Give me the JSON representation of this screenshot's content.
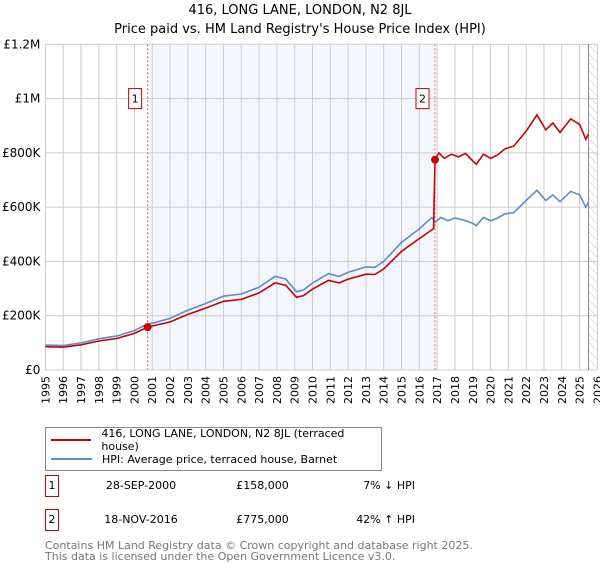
{
  "chart_data": {
    "type": "line",
    "title": "416, LONG LANE, LONDON, N2 8JL",
    "subtitle": "Price paid vs. HM Land Registry's House Price Index (HPI)",
    "xlim": [
      1995,
      2026
    ],
    "ylim": [
      0,
      1200000
    ],
    "x_ticks": [
      "1995",
      "1996",
      "1997",
      "1998",
      "1999",
      "2000",
      "2001",
      "2002",
      "2003",
      "2004",
      "2005",
      "2006",
      "2007",
      "2008",
      "2009",
      "2010",
      "2011",
      "2012",
      "2013",
      "2014",
      "2015",
      "2016",
      "2017",
      "2018",
      "2019",
      "2020",
      "2021",
      "2022",
      "2023",
      "2024",
      "2025",
      "2026"
    ],
    "y_ticks": [
      {
        "v": 0,
        "label": "£0"
      },
      {
        "v": 200000,
        "label": "£200K"
      },
      {
        "v": 400000,
        "label": "£400K"
      },
      {
        "v": 600000,
        "label": "£600K"
      },
      {
        "v": 800000,
        "label": "£800K"
      },
      {
        "v": 1000000,
        "label": "£1M"
      },
      {
        "v": 1200000,
        "label": "£1.2M"
      }
    ],
    "grid": true,
    "shaded_range": [
      2000.74,
      2016.88
    ],
    "forecast_hatch_from": 2025.5,
    "series": [
      {
        "name": "416, LONG LANE, LONDON, N2 8JL (terraced house)",
        "color": "#cc0000",
        "points": [
          [
            1995,
            86
          ],
          [
            1996,
            84
          ],
          [
            1997,
            93
          ],
          [
            1998,
            107
          ],
          [
            1999,
            116
          ],
          [
            2000,
            135
          ],
          [
            2000.74,
            158
          ],
          [
            2001,
            162
          ],
          [
            2002,
            177
          ],
          [
            2003,
            205
          ],
          [
            2004,
            228
          ],
          [
            2005,
            253
          ],
          [
            2006,
            260
          ],
          [
            2007,
            284
          ],
          [
            2007.9,
            321
          ],
          [
            2008.5,
            312
          ],
          [
            2009.1,
            268
          ],
          [
            2009.5,
            274
          ],
          [
            2010,
            298
          ],
          [
            2010.9,
            330
          ],
          [
            2011.5,
            321
          ],
          [
            2012,
            335
          ],
          [
            2013,
            353
          ],
          [
            2013.5,
            352
          ],
          [
            2014,
            372
          ],
          [
            2015,
            437
          ],
          [
            2016,
            484
          ],
          [
            2016.8,
            521
          ],
          [
            2016.88,
            775
          ],
          [
            2017.1,
            800
          ],
          [
            2017.4,
            780
          ],
          [
            2017.8,
            795
          ],
          [
            2018.2,
            785
          ],
          [
            2018.6,
            798
          ],
          [
            2019,
            770
          ],
          [
            2019.2,
            758
          ],
          [
            2019.6,
            795
          ],
          [
            2020,
            780
          ],
          [
            2020.4,
            792
          ],
          [
            2020.8,
            815
          ],
          [
            2021.3,
            825
          ],
          [
            2022,
            880
          ],
          [
            2022.6,
            940
          ],
          [
            2023.1,
            885
          ],
          [
            2023.5,
            910
          ],
          [
            2023.9,
            875
          ],
          [
            2024.5,
            925
          ],
          [
            2025,
            905
          ],
          [
            2025.35,
            850
          ],
          [
            2025.5,
            870
          ]
        ]
      },
      {
        "name": "HPI: Average price, terraced house, Barnet",
        "color": "#5b8bd0",
        "points": [
          [
            1995,
            92
          ],
          [
            1996,
            90
          ],
          [
            1997,
            100
          ],
          [
            1998,
            115
          ],
          [
            1999,
            125
          ],
          [
            2000,
            145
          ],
          [
            2000.74,
            170
          ],
          [
            2001,
            172
          ],
          [
            2002,
            190
          ],
          [
            2003,
            220
          ],
          [
            2004,
            245
          ],
          [
            2005,
            272
          ],
          [
            2006,
            280
          ],
          [
            2007,
            305
          ],
          [
            2007.9,
            345
          ],
          [
            2008.5,
            335
          ],
          [
            2009.1,
            288
          ],
          [
            2009.5,
            295
          ],
          [
            2010,
            320
          ],
          [
            2010.9,
            355
          ],
          [
            2011.5,
            345
          ],
          [
            2012,
            360
          ],
          [
            2013,
            380
          ],
          [
            2013.5,
            378
          ],
          [
            2014,
            400
          ],
          [
            2015,
            470
          ],
          [
            2016,
            520
          ],
          [
            2016.7,
            562
          ],
          [
            2016.9,
            545
          ],
          [
            2017.2,
            562
          ],
          [
            2017.6,
            550
          ],
          [
            2018,
            560
          ],
          [
            2018.5,
            552
          ],
          [
            2019,
            540
          ],
          [
            2019.2,
            532
          ],
          [
            2019.6,
            562
          ],
          [
            2020,
            550
          ],
          [
            2020.4,
            560
          ],
          [
            2020.8,
            575
          ],
          [
            2021.3,
            580
          ],
          [
            2022,
            625
          ],
          [
            2022.6,
            662
          ],
          [
            2023.1,
            625
          ],
          [
            2023.5,
            645
          ],
          [
            2023.9,
            620
          ],
          [
            2024.5,
            658
          ],
          [
            2025,
            645
          ],
          [
            2025.35,
            600
          ],
          [
            2025.5,
            620
          ]
        ]
      }
    ],
    "sales": [
      {
        "n": "1",
        "year": 2000.74,
        "price": 158000
      },
      {
        "n": "2",
        "year": 2016.88,
        "price": 775000
      }
    ]
  },
  "legend": {
    "items": [
      "416, LONG LANE, LONDON, N2 8JL (terraced house)",
      "HPI: Average price, terraced house, Barnet"
    ]
  },
  "sales_table": [
    {
      "n": "1",
      "date": "28-SEP-2000",
      "price": "£158,000",
      "hpi": "7% ↓ HPI"
    },
    {
      "n": "2",
      "date": "18-NOV-2016",
      "price": "£775,000",
      "hpi": "42% ↑ HPI"
    }
  ],
  "footer": {
    "line1": "Contains HM Land Registry data © Crown copyright and database right 2025.",
    "line2": "This data is licensed under the Open Government Licence v3.0."
  }
}
